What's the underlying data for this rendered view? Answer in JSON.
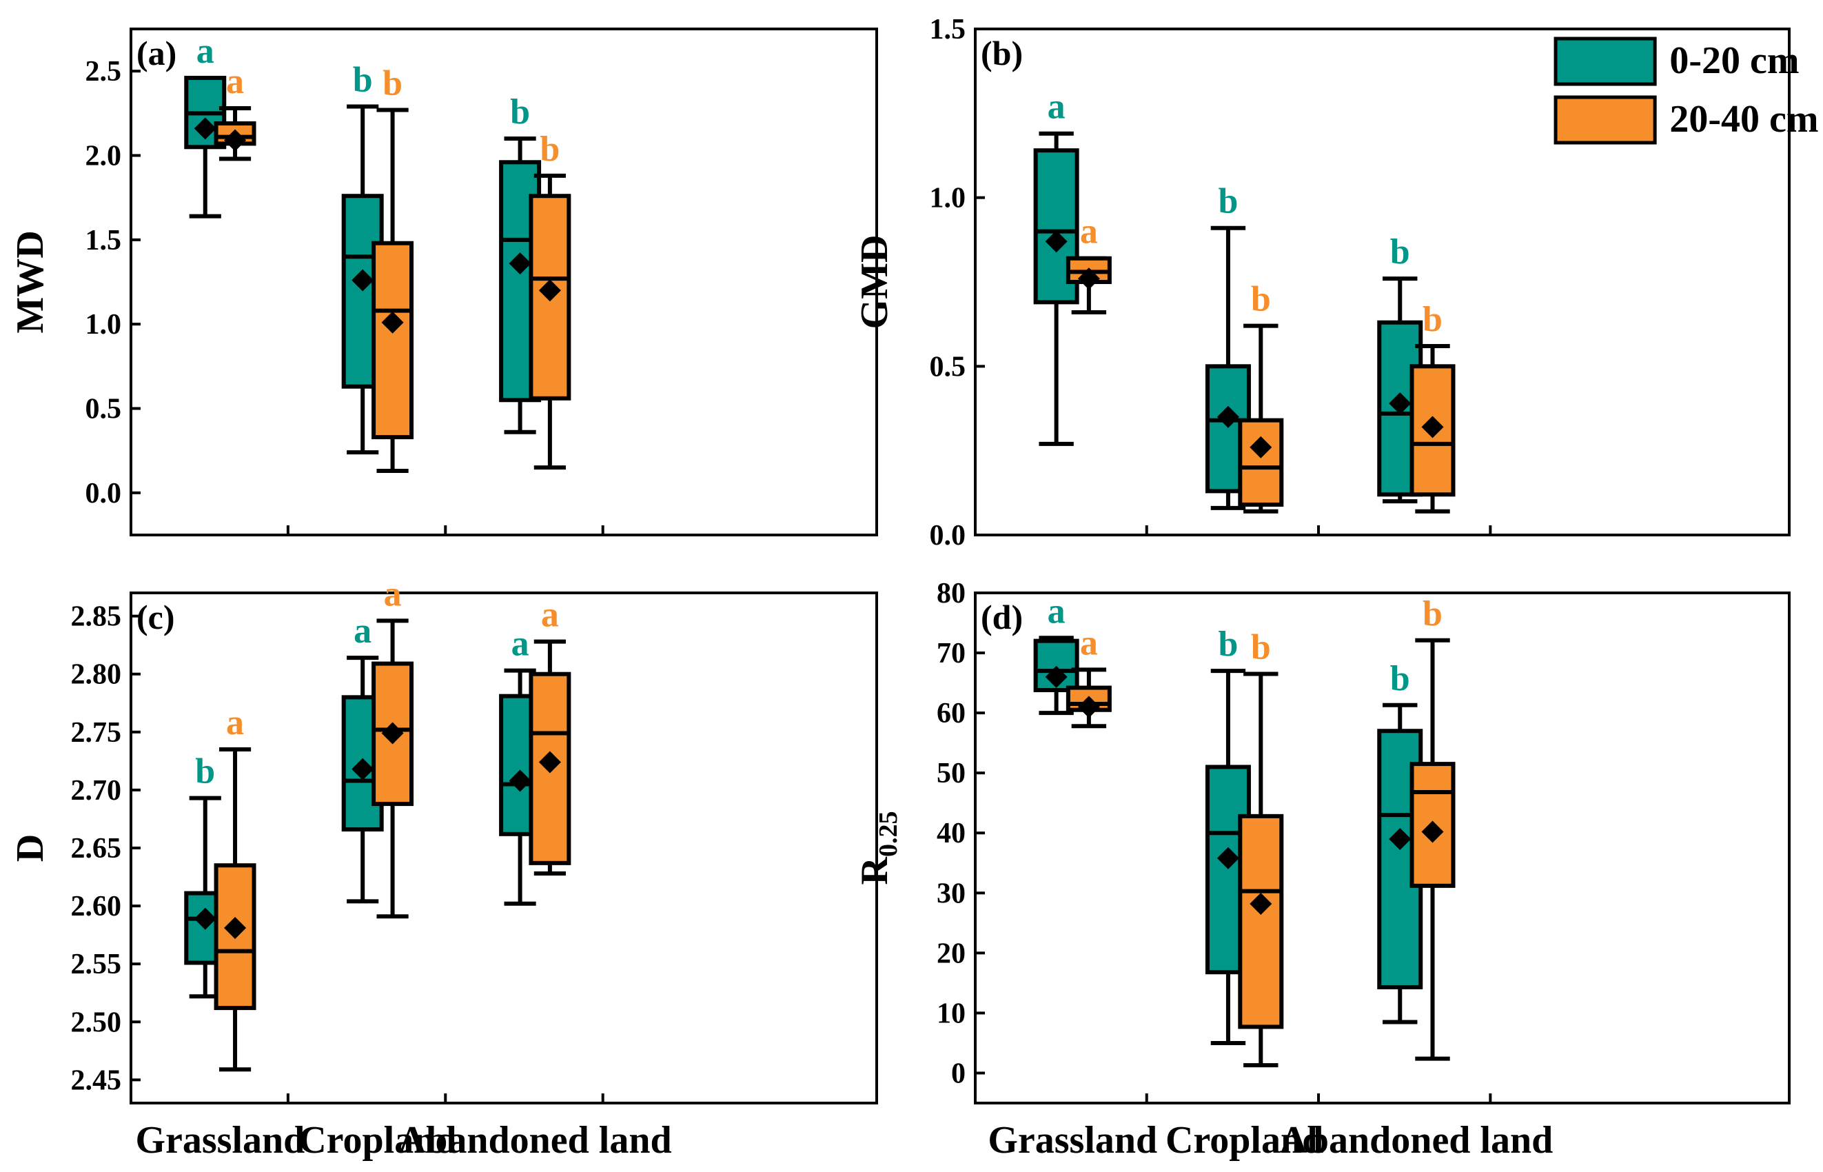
{
  "colors": {
    "teal": "#009688",
    "orange": "#F68E2C",
    "outline": "#000000"
  },
  "legend": {
    "position": "top-right of panel (b)",
    "entries": [
      {
        "label": "0-20 cm",
        "color": "#009688"
      },
      {
        "label": "20-40 cm",
        "color": "#F68E2C"
      }
    ]
  },
  "chart_data": [
    {
      "type": "box",
      "panel_label": "(a)",
      "ylabel": "MWD",
      "ylim": [
        -0.25,
        2.75
      ],
      "yticks": [
        "0.0",
        "0.5",
        "1.0",
        "1.5",
        "2.0",
        "2.5"
      ],
      "categories": [
        "Grassland",
        "Cropland",
        "Abandoned land"
      ],
      "series": [
        {
          "name": "0-20 cm",
          "boxes": [
            {
              "min": 1.64,
              "q1": 2.05,
              "median": 2.25,
              "q3": 2.46,
              "max": 2.46,
              "mean": 2.16,
              "letter": "a"
            },
            {
              "min": 0.24,
              "q1": 0.63,
              "median": 1.4,
              "q3": 1.76,
              "max": 2.29,
              "mean": 1.26,
              "letter": "b"
            },
            {
              "min": 0.36,
              "q1": 0.55,
              "median": 1.5,
              "q3": 1.96,
              "max": 2.1,
              "mean": 1.36,
              "letter": "b"
            }
          ]
        },
        {
          "name": "20-40 cm",
          "boxes": [
            {
              "min": 1.98,
              "q1": 2.07,
              "median": 2.11,
              "q3": 2.19,
              "max": 2.28,
              "mean": 2.09,
              "letter": "a"
            },
            {
              "min": 0.13,
              "q1": 0.33,
              "median": 1.08,
              "q3": 1.48,
              "max": 2.27,
              "mean": 1.01,
              "letter": "b"
            },
            {
              "min": 0.15,
              "q1": 0.56,
              "median": 1.27,
              "q3": 1.76,
              "max": 1.88,
              "mean": 1.2,
              "letter": "b"
            }
          ]
        }
      ]
    },
    {
      "type": "box",
      "panel_label": "(b)",
      "ylabel": "GMD",
      "ylim": [
        0.0,
        1.5
      ],
      "yticks": [
        "0.0",
        "0.5",
        "1.0",
        "1.5"
      ],
      "categories": [
        "Grassland",
        "Cropland",
        "Abandoned land"
      ],
      "series": [
        {
          "name": "0-20 cm",
          "boxes": [
            {
              "min": 0.27,
              "q1": 0.69,
              "median": 0.9,
              "q3": 1.14,
              "max": 1.19,
              "mean": 0.87,
              "letter": "a"
            },
            {
              "min": 0.08,
              "q1": 0.13,
              "median": 0.34,
              "q3": 0.5,
              "max": 0.91,
              "mean": 0.35,
              "letter": "b"
            },
            {
              "min": 0.1,
              "q1": 0.12,
              "median": 0.36,
              "q3": 0.63,
              "max": 0.76,
              "mean": 0.39,
              "letter": "b"
            }
          ]
        },
        {
          "name": "20-40 cm",
          "boxes": [
            {
              "min": 0.66,
              "q1": 0.75,
              "median": 0.78,
              "q3": 0.82,
              "max": 0.82,
              "mean": 0.76,
              "letter": "a"
            },
            {
              "min": 0.07,
              "q1": 0.09,
              "median": 0.2,
              "q3": 0.34,
              "max": 0.62,
              "mean": 0.26,
              "letter": "b"
            },
            {
              "min": 0.07,
              "q1": 0.12,
              "median": 0.27,
              "q3": 0.5,
              "max": 0.56,
              "mean": 0.32,
              "letter": "b"
            }
          ]
        }
      ]
    },
    {
      "type": "box",
      "panel_label": "(c)",
      "ylabel": "D",
      "ylim": [
        2.43,
        2.87
      ],
      "yticks": [
        "2.45",
        "2.50",
        "2.55",
        "2.60",
        "2.65",
        "2.70",
        "2.75",
        "2.80",
        "2.85"
      ],
      "categories": [
        "Grassland",
        "Cropland",
        "Abandoned land"
      ],
      "series": [
        {
          "name": "0-20 cm",
          "boxes": [
            {
              "min": 2.522,
              "q1": 2.551,
              "median": 2.589,
              "q3": 2.611,
              "max": 2.693,
              "mean": 2.589,
              "letter": "b"
            },
            {
              "min": 2.604,
              "q1": 2.666,
              "median": 2.708,
              "q3": 2.78,
              "max": 2.814,
              "mean": 2.718,
              "letter": "a"
            },
            {
              "min": 2.602,
              "q1": 2.662,
              "median": 2.705,
              "q3": 2.781,
              "max": 2.803,
              "mean": 2.708,
              "letter": "a"
            }
          ]
        },
        {
          "name": "20-40 cm",
          "boxes": [
            {
              "min": 2.459,
              "q1": 2.512,
              "median": 2.561,
              "q3": 2.635,
              "max": 2.735,
              "mean": 2.581,
              "letter": "a"
            },
            {
              "min": 2.591,
              "q1": 2.688,
              "median": 2.752,
              "q3": 2.809,
              "max": 2.846,
              "mean": 2.749,
              "letter": "a"
            },
            {
              "min": 2.628,
              "q1": 2.637,
              "median": 2.749,
              "q3": 2.8,
              "max": 2.828,
              "mean": 2.724,
              "letter": "a"
            }
          ]
        }
      ]
    },
    {
      "type": "box",
      "panel_label": "(d)",
      "ylabel": "R0.25",
      "ylabel_main": "R",
      "ylabel_sub": "0.25",
      "ylim": [
        -5,
        80
      ],
      "yticks": [
        "0",
        "10",
        "20",
        "30",
        "40",
        "50",
        "60",
        "70",
        "80"
      ],
      "categories": [
        "Grassland",
        "Cropland",
        "Abandoned land"
      ],
      "series": [
        {
          "name": "0-20 cm",
          "boxes": [
            {
              "min": 60.0,
              "q1": 63.8,
              "median": 67.0,
              "q3": 72.0,
              "max": 72.5,
              "mean": 66.0,
              "letter": "a"
            },
            {
              "min": 5.0,
              "q1": 16.8,
              "median": 40.0,
              "q3": 51.0,
              "max": 67.0,
              "mean": 35.8,
              "letter": "b"
            },
            {
              "min": 8.5,
              "q1": 14.3,
              "median": 43.0,
              "q3": 57.0,
              "max": 61.3,
              "mean": 39.0,
              "letter": "b"
            }
          ]
        },
        {
          "name": "20-40 cm",
          "boxes": [
            {
              "min": 57.8,
              "q1": 60.5,
              "median": 61.5,
              "q3": 64.2,
              "max": 67.2,
              "mean": 61.0,
              "letter": "a"
            },
            {
              "min": 1.3,
              "q1": 7.7,
              "median": 30.3,
              "q3": 42.8,
              "max": 66.5,
              "mean": 28.2,
              "letter": "b"
            },
            {
              "min": 2.4,
              "q1": 31.2,
              "median": 46.8,
              "q3": 51.5,
              "max": 72.1,
              "mean": 40.2,
              "letter": "b"
            }
          ]
        }
      ]
    }
  ]
}
